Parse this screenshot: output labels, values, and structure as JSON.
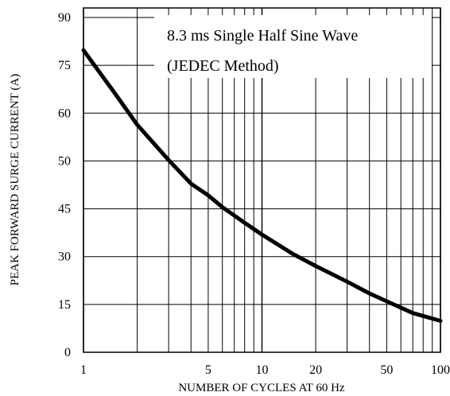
{
  "chart_data": {
    "type": "line",
    "title": "",
    "xlabel": "NUMBER OF CYCLES AT 60 Hz",
    "ylabel": "PEAK FORWARD SURGE CURRENT (A)",
    "x_scale": "log",
    "xlim": [
      1,
      100
    ],
    "x_ticks": [
      1,
      5,
      10,
      20,
      50,
      100
    ],
    "x_tick_labels": [
      "1",
      "5",
      "10",
      "20",
      "50",
      "100"
    ],
    "y_tick_labels": [
      "0",
      "15",
      "30",
      "45",
      "50",
      "60",
      "75",
      "90"
    ],
    "grid": true,
    "annotation": [
      "8.3 ms Single Half Sine Wave",
      "(JEDEC Method)"
    ],
    "series": [
      {
        "x": [
          1,
          1.5,
          2,
          3,
          4,
          5,
          6,
          8,
          10,
          15,
          20,
          30,
          40,
          50,
          70,
          100
        ],
        "y": [
          77,
          66,
          58,
          49,
          43,
          40,
          37,
          33,
          30,
          25,
          22,
          18,
          15,
          13,
          10,
          8
        ]
      }
    ],
    "line_color": "#000000"
  }
}
